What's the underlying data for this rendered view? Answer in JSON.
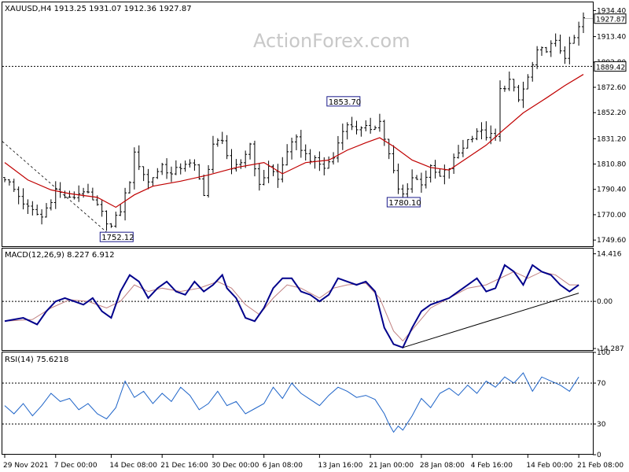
{
  "chart_data": [
    {
      "type": "candlestick",
      "title": "XAUUSD,H4  1913.25 1931.07 1912.36 1927.87",
      "watermark": "ActionForex.com",
      "y_ticks": [
        "1934.40",
        "1913.40",
        "1892.80",
        "1872.60",
        "1852.20",
        "1831.20",
        "1810.80",
        "1790.40",
        "1770.00",
        "1749.60"
      ],
      "y_tick_values": [
        1934.4,
        1913.4,
        1892.8,
        1872.6,
        1852.2,
        1831.2,
        1810.8,
        1790.4,
        1770.0,
        1749.6
      ],
      "ylim": [
        1744.0,
        1941.0
      ],
      "current_price": 1927.87,
      "current_price_label": "1927.87",
      "level_line": 1889.42,
      "level_line_label": "1889.42",
      "annotations": [
        {
          "text": "1853.70",
          "x": 73,
          "y": 1853.7
        },
        {
          "text": "1780.10",
          "x": 86,
          "y": 1780.1
        },
        {
          "text": "1752.12",
          "x": 24,
          "y": 1752.12
        }
      ],
      "x_count": 126,
      "price_path": [
        [
          0,
          1800
        ],
        [
          5,
          1775
        ],
        [
          8,
          1768
        ],
        [
          11,
          1790
        ],
        [
          14,
          1782
        ],
        [
          17,
          1790
        ],
        [
          20,
          1776
        ],
        [
          23,
          1760
        ],
        [
          25,
          1774
        ],
        [
          27,
          1798
        ],
        [
          28,
          1818
        ],
        [
          31,
          1796
        ],
        [
          34,
          1810
        ],
        [
          36,
          1802
        ],
        [
          39,
          1812
        ],
        [
          41,
          1808
        ],
        [
          43,
          1788
        ],
        [
          45,
          1825
        ],
        [
          47,
          1832
        ],
        [
          49,
          1804
        ],
        [
          51,
          1812
        ],
        [
          53,
          1827
        ],
        [
          55,
          1792
        ],
        [
          57,
          1810
        ],
        [
          59,
          1798
        ],
        [
          61,
          1822
        ],
        [
          63,
          1830
        ],
        [
          65,
          1818
        ],
        [
          67,
          1813
        ],
        [
          69,
          1808
        ],
        [
          71,
          1816
        ],
        [
          73,
          1840
        ],
        [
          75,
          1842
        ],
        [
          77,
          1838
        ],
        [
          79,
          1840
        ],
        [
          81,
          1845
        ],
        [
          83,
          1818
        ],
        [
          85,
          1790
        ],
        [
          86,
          1786
        ],
        [
          88,
          1800
        ],
        [
          90,
          1796
        ],
        [
          92,
          1807
        ],
        [
          94,
          1800
        ],
        [
          96,
          1808
        ],
        [
          98,
          1820
        ],
        [
          100,
          1830
        ],
        [
          102,
          1838
        ],
        [
          104,
          1834
        ],
        [
          106,
          1832
        ],
        [
          107,
          1870
        ],
        [
          109,
          1878
        ],
        [
          111,
          1862
        ],
        [
          113,
          1880
        ],
        [
          115,
          1900
        ],
        [
          117,
          1904
        ],
        [
          119,
          1908
        ],
        [
          121,
          1898
        ],
        [
          123,
          1912
        ],
        [
          124,
          1920
        ],
        [
          125,
          1928
        ]
      ],
      "ma_path": [
        [
          0,
          1812
        ],
        [
          5,
          1798
        ],
        [
          10,
          1790
        ],
        [
          14,
          1787
        ],
        [
          20,
          1784
        ],
        [
          24,
          1776
        ],
        [
          28,
          1786
        ],
        [
          32,
          1793
        ],
        [
          38,
          1797
        ],
        [
          44,
          1802
        ],
        [
          50,
          1808
        ],
        [
          56,
          1812
        ],
        [
          60,
          1803
        ],
        [
          65,
          1812
        ],
        [
          70,
          1814
        ],
        [
          74,
          1822
        ],
        [
          78,
          1828
        ],
        [
          81,
          1832
        ],
        [
          84,
          1825
        ],
        [
          88,
          1814
        ],
        [
          92,
          1808
        ],
        [
          96,
          1806
        ],
        [
          100,
          1816
        ],
        [
          104,
          1826
        ],
        [
          107,
          1836
        ],
        [
          112,
          1852
        ],
        [
          117,
          1864
        ],
        [
          121,
          1874
        ],
        [
          125,
          1883
        ]
      ],
      "x_ticks": [
        "29 Nov 2021",
        "7 Dec 00:00",
        "14 Dec 08:00",
        "21 Dec 16:00",
        "30 Dec 00:00",
        "6 Jan 08:00",
        "13 Jan 16:00",
        "21 Jan 00:00",
        "28 Jan 08:00",
        "4 Feb 16:00",
        "14 Feb 00:00",
        "21 Feb 08:00"
      ],
      "x_tick_index": [
        0,
        11,
        23,
        34,
        45,
        56,
        68,
        79,
        90,
        101,
        113,
        124
      ]
    },
    {
      "type": "line",
      "title": "MACD(12,26,9) 8.227 6.912",
      "y_ticks": [
        "14.416",
        "0.00",
        "-14.287"
      ],
      "y_tick_values": [
        14.416,
        0.0,
        -14.287
      ],
      "ylim": [
        -15.0,
        16.0
      ],
      "macd_path": [
        [
          0,
          -6
        ],
        [
          4,
          -5
        ],
        [
          7,
          -7
        ],
        [
          9,
          -3
        ],
        [
          11,
          0
        ],
        [
          13,
          1
        ],
        [
          15,
          0
        ],
        [
          17,
          -1
        ],
        [
          19,
          1
        ],
        [
          21,
          -3
        ],
        [
          23,
          -5
        ],
        [
          25,
          3
        ],
        [
          27,
          8
        ],
        [
          29,
          6
        ],
        [
          31,
          1
        ],
        [
          33,
          4
        ],
        [
          35,
          6
        ],
        [
          37,
          3
        ],
        [
          39,
          2
        ],
        [
          41,
          6
        ],
        [
          43,
          3
        ],
        [
          45,
          5
        ],
        [
          47,
          8
        ],
        [
          48,
          4
        ],
        [
          50,
          1
        ],
        [
          52,
          -5
        ],
        [
          54,
          -6
        ],
        [
          56,
          -2
        ],
        [
          58,
          4
        ],
        [
          60,
          7
        ],
        [
          62,
          7
        ],
        [
          64,
          3
        ],
        [
          66,
          2
        ],
        [
          68,
          0
        ],
        [
          70,
          2
        ],
        [
          72,
          7
        ],
        [
          74,
          6
        ],
        [
          76,
          5
        ],
        [
          78,
          6
        ],
        [
          80,
          3
        ],
        [
          82,
          -8
        ],
        [
          84,
          -13
        ],
        [
          86,
          -14
        ],
        [
          88,
          -8
        ],
        [
          90,
          -3
        ],
        [
          92,
          -1
        ],
        [
          94,
          0
        ],
        [
          96,
          1
        ],
        [
          98,
          3
        ],
        [
          100,
          5
        ],
        [
          102,
          7
        ],
        [
          104,
          3
        ],
        [
          106,
          4
        ],
        [
          108,
          11
        ],
        [
          110,
          9
        ],
        [
          112,
          5
        ],
        [
          114,
          11
        ],
        [
          116,
          9
        ],
        [
          118,
          8
        ],
        [
          120,
          5
        ],
        [
          122,
          3
        ],
        [
          124,
          5
        ]
      ],
      "signal_path": [
        [
          0,
          -6
        ],
        [
          6,
          -5.5
        ],
        [
          10,
          -2
        ],
        [
          14,
          0.5
        ],
        [
          18,
          0
        ],
        [
          22,
          -2
        ],
        [
          25,
          0
        ],
        [
          28,
          5
        ],
        [
          31,
          3
        ],
        [
          34,
          4
        ],
        [
          38,
          3
        ],
        [
          42,
          4
        ],
        [
          46,
          6
        ],
        [
          49,
          4
        ],
        [
          52,
          -1
        ],
        [
          55,
          -4
        ],
        [
          58,
          1
        ],
        [
          61,
          5
        ],
        [
          64,
          4
        ],
        [
          68,
          1
        ],
        [
          71,
          4
        ],
        [
          74,
          5
        ],
        [
          78,
          5.5
        ],
        [
          81,
          1
        ],
        [
          84,
          -9
        ],
        [
          86,
          -12
        ],
        [
          89,
          -7
        ],
        [
          92,
          -2
        ],
        [
          96,
          1
        ],
        [
          100,
          4
        ],
        [
          104,
          5
        ],
        [
          107,
          7
        ],
        [
          110,
          9
        ],
        [
          113,
          7
        ],
        [
          116,
          9
        ],
        [
          119,
          8
        ],
        [
          122,
          5
        ],
        [
          124,
          5
        ]
      ],
      "trendline": {
        "from": [
          86,
          -14.0
        ],
        "to": [
          124,
          2.5
        ]
      }
    },
    {
      "type": "line",
      "title": "RSI(14) 75.6218",
      "y_ticks": [
        "100",
        "70",
        "30",
        "0"
      ],
      "y_tick_values": [
        100,
        70,
        30,
        0
      ],
      "ylim": [
        0,
        100
      ],
      "levels": [
        70,
        30
      ],
      "rsi_path": [
        [
          0,
          48
        ],
        [
          2,
          40
        ],
        [
          4,
          50
        ],
        [
          6,
          38
        ],
        [
          8,
          48
        ],
        [
          10,
          60
        ],
        [
          12,
          52
        ],
        [
          14,
          55
        ],
        [
          16,
          44
        ],
        [
          18,
          50
        ],
        [
          20,
          40
        ],
        [
          22,
          35
        ],
        [
          24,
          46
        ],
        [
          26,
          72
        ],
        [
          28,
          56
        ],
        [
          30,
          62
        ],
        [
          32,
          50
        ],
        [
          34,
          60
        ],
        [
          36,
          52
        ],
        [
          38,
          66
        ],
        [
          40,
          58
        ],
        [
          42,
          44
        ],
        [
          44,
          50
        ],
        [
          46,
          62
        ],
        [
          48,
          48
        ],
        [
          50,
          52
        ],
        [
          52,
          40
        ],
        [
          54,
          45
        ],
        [
          56,
          50
        ],
        [
          58,
          66
        ],
        [
          60,
          55
        ],
        [
          62,
          70
        ],
        [
          64,
          60
        ],
        [
          66,
          54
        ],
        [
          68,
          48
        ],
        [
          70,
          58
        ],
        [
          72,
          66
        ],
        [
          74,
          62
        ],
        [
          76,
          56
        ],
        [
          78,
          58
        ],
        [
          80,
          54
        ],
        [
          82,
          40
        ],
        [
          83,
          30
        ],
        [
          84,
          22
        ],
        [
          85,
          28
        ],
        [
          86,
          24
        ],
        [
          88,
          38
        ],
        [
          90,
          55
        ],
        [
          92,
          46
        ],
        [
          94,
          60
        ],
        [
          96,
          65
        ],
        [
          98,
          58
        ],
        [
          100,
          68
        ],
        [
          102,
          60
        ],
        [
          104,
          72
        ],
        [
          106,
          66
        ],
        [
          108,
          76
        ],
        [
          110,
          70
        ],
        [
          112,
          80
        ],
        [
          114,
          62
        ],
        [
          116,
          76
        ],
        [
          118,
          72
        ],
        [
          120,
          68
        ],
        [
          122,
          62
        ],
        [
          124,
          76
        ]
      ]
    }
  ]
}
